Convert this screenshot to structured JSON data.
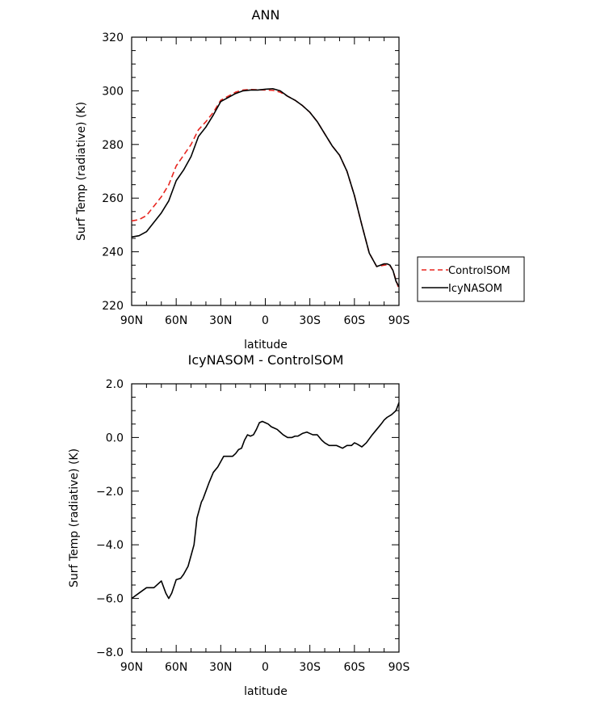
{
  "chart_data": [
    {
      "type": "line",
      "title": "ANN",
      "xlabel": "latitude",
      "ylabel": "Surf Temp (radiative) (K)",
      "x_ticks": [
        "90N",
        "60N",
        "30N",
        "0",
        "30S",
        "60S",
        "90S"
      ],
      "x_tick_values": [
        90,
        60,
        30,
        0,
        -30,
        -60,
        -90
      ],
      "y_ticks": [
        "220",
        "240",
        "260",
        "280",
        "300",
        "320"
      ],
      "y_tick_values": [
        220,
        240,
        260,
        280,
        300,
        320
      ],
      "xlim": [
        90,
        -90
      ],
      "ylim": [
        220,
        320
      ],
      "legend": {
        "placement": "right"
      },
      "series": [
        {
          "name": "ControlSOM",
          "color": "#e8251f",
          "dash": "dashed",
          "x": [
            90,
            85,
            80,
            75,
            70,
            65,
            60,
            55,
            50,
            45,
            40,
            35,
            30,
            25,
            20,
            15,
            10,
            5,
            0,
            -5,
            -10,
            -15,
            -20,
            -25,
            -30,
            -35,
            -40,
            -45,
            -50,
            -55,
            -60,
            -65,
            -70,
            -75,
            -80,
            -82,
            -84,
            -86,
            -88,
            -90
          ],
          "values": [
            251.5,
            252,
            253.5,
            257,
            260.5,
            265,
            272,
            276,
            280,
            285.5,
            288.5,
            292,
            296.5,
            298,
            299.5,
            300.3,
            300.5,
            300.4,
            300.3,
            300.2,
            299.5,
            298,
            296.5,
            294.5,
            292,
            288.5,
            284,
            279.5,
            276,
            270,
            261,
            250,
            239.5,
            234.5,
            235,
            235.2,
            234.8,
            233,
            229.5,
            226
          ]
        },
        {
          "name": "IcyNASOM",
          "color": "#000000",
          "dash": "solid",
          "x": [
            90,
            85,
            80,
            75,
            70,
            65,
            60,
            55,
            50,
            45,
            40,
            35,
            30,
            25,
            20,
            15,
            10,
            5,
            0,
            -5,
            -10,
            -15,
            -20,
            -25,
            -30,
            -35,
            -40,
            -45,
            -50,
            -55,
            -60,
            -65,
            -70,
            -75,
            -80,
            -82,
            -84,
            -86,
            -88,
            -90
          ],
          "values": [
            245.5,
            246,
            247.5,
            251,
            254.5,
            259,
            266.5,
            270.5,
            275.5,
            283,
            286.5,
            291,
            296,
            297.5,
            299,
            300,
            300.3,
            300.3,
            300.6,
            300.8,
            300,
            298,
            296.5,
            294.5,
            292,
            288.5,
            284,
            279.5,
            276,
            270,
            261,
            250,
            239.5,
            234.5,
            235.5,
            235.5,
            235,
            233,
            229,
            227
          ]
        }
      ]
    },
    {
      "type": "line",
      "title": "IcyNASOM - ControlSOM",
      "xlabel": "latitude",
      "ylabel": "Surf Temp (radiative) (K)",
      "x_ticks": [
        "90N",
        "60N",
        "30N",
        "0",
        "30S",
        "60S",
        "90S"
      ],
      "x_tick_values": [
        90,
        60,
        30,
        0,
        -30,
        -60,
        -90
      ],
      "y_ticks": [
        "−8.0",
        "−6.0",
        "−4.0",
        "−2.0",
        "0.0",
        "2.0"
      ],
      "y_tick_values": [
        -8,
        -6,
        -4,
        -2,
        0,
        2
      ],
      "xlim": [
        90,
        -90
      ],
      "ylim": [
        -8,
        2
      ],
      "series": [
        {
          "color": "#000000",
          "dash": "solid",
          "x": [
            90,
            85,
            80,
            75,
            70,
            67,
            65,
            63,
            60,
            57,
            55,
            52,
            50,
            48,
            46,
            44,
            43,
            42,
            40,
            38,
            35,
            32,
            30,
            28,
            25,
            22,
            20,
            18,
            16,
            14,
            12,
            10,
            8,
            6,
            4,
            2,
            0,
            -2,
            -4,
            -6,
            -8,
            -10,
            -12,
            -15,
            -18,
            -20,
            -22,
            -25,
            -28,
            -30,
            -32,
            -35,
            -38,
            -40,
            -43,
            -45,
            -48,
            -50,
            -52,
            -55,
            -58,
            -60,
            -62,
            -65,
            -68,
            -70,
            -72,
            -75,
            -78,
            -80,
            -82,
            -85,
            -88,
            -90
          ],
          "values": [
            -6.0,
            -5.8,
            -5.6,
            -5.6,
            -5.35,
            -5.8,
            -6.0,
            -5.8,
            -5.3,
            -5.25,
            -5.1,
            -4.8,
            -4.4,
            -4.0,
            -3.0,
            -2.6,
            -2.4,
            -2.3,
            -2.0,
            -1.7,
            -1.3,
            -1.1,
            -0.9,
            -0.7,
            -0.7,
            -0.7,
            -0.6,
            -0.45,
            -0.4,
            -0.1,
            0.1,
            0.05,
            0.1,
            0.3,
            0.55,
            0.6,
            0.55,
            0.5,
            0.4,
            0.35,
            0.3,
            0.2,
            0.1,
            0.0,
            0.0,
            0.05,
            0.05,
            0.15,
            0.2,
            0.15,
            0.1,
            0.1,
            -0.1,
            -0.2,
            -0.3,
            -0.3,
            -0.3,
            -0.35,
            -0.4,
            -0.3,
            -0.3,
            -0.2,
            -0.25,
            -0.35,
            -0.2,
            -0.05,
            0.1,
            0.3,
            0.5,
            0.65,
            0.75,
            0.85,
            1.0,
            1.3
          ]
        }
      ]
    }
  ]
}
